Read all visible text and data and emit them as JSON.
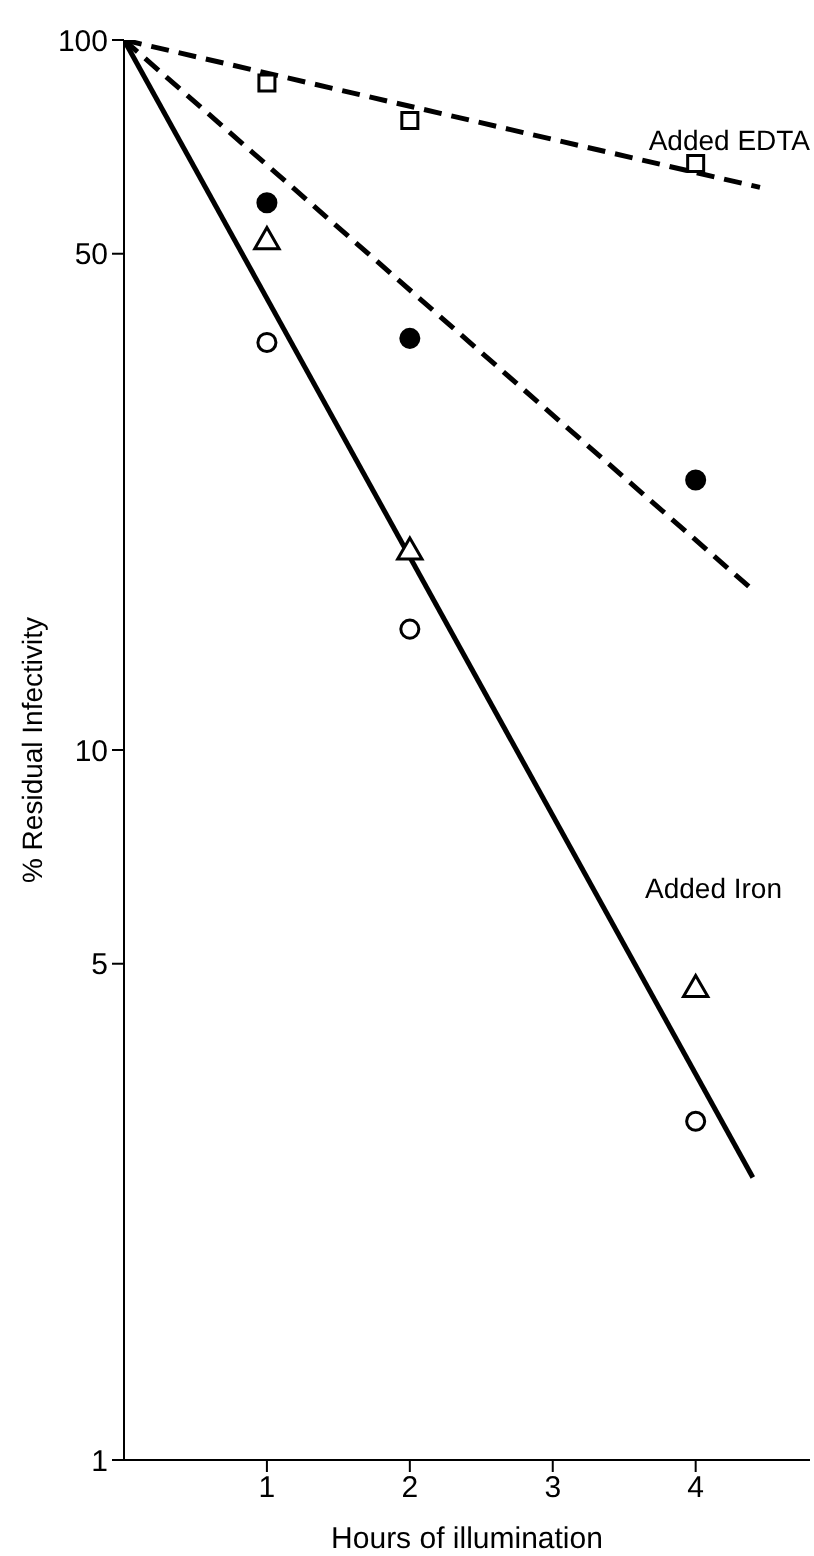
{
  "chart_data": {
    "type": "scatter",
    "xlabel": "Hours of illumination",
    "ylabel": "% Residual Infectivity",
    "xlim": [
      0,
      4.8
    ],
    "xticks": [
      1,
      2,
      3,
      4
    ],
    "ylim": [
      1,
      100
    ],
    "yticks": [
      1,
      5,
      10,
      50,
      100
    ],
    "log": "y",
    "grid": false,
    "series": [
      {
        "type": "line",
        "color": "#000000",
        "line_style": "dashed",
        "marker": "none",
        "x": [
          0,
          4.45
        ],
        "values": [
          100,
          62
        ]
      },
      {
        "type": "line",
        "color": "#000000",
        "line_style": "dashed",
        "marker": "none",
        "x": [
          0,
          4.4
        ],
        "values": [
          100,
          16.8
        ]
      },
      {
        "type": "line",
        "color": "#000000",
        "line_style": "solid",
        "marker": "none",
        "x": [
          0,
          4.4
        ],
        "values": [
          100,
          2.5
        ]
      },
      {
        "color": "#ffffff",
        "marker": "square",
        "x": [
          1,
          2,
          4
        ],
        "values": [
          87,
          77,
          67
        ]
      },
      {
        "color": "#000000",
        "marker": "circle",
        "x": [
          1,
          2,
          4
        ],
        "values": [
          59,
          38,
          24
        ]
      },
      {
        "color": "#ffffff",
        "marker": "triangle",
        "x": [
          1,
          2,
          4
        ],
        "values": [
          52,
          19,
          4.6
        ]
      },
      {
        "color": "#ffffff",
        "marker": "circle",
        "x": [
          1,
          2,
          4
        ],
        "values": [
          37.5,
          14.8,
          3.0
        ]
      }
    ],
    "annotations": [
      "Added EDTA",
      "Added Iron"
    ]
  }
}
